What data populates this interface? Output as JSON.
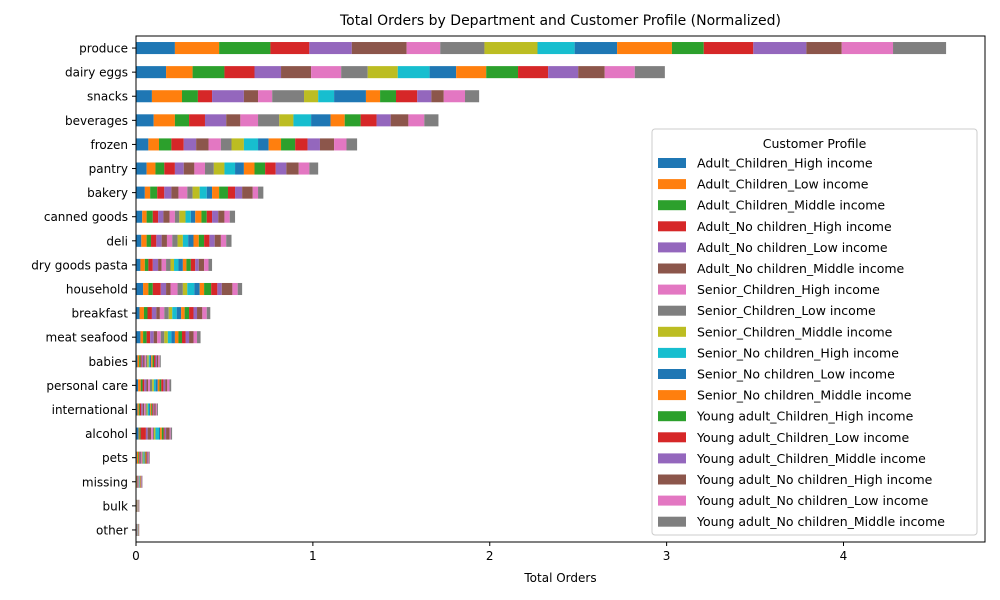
{
  "chart_data": {
    "type": "bar",
    "orientation": "horizontal",
    "stacked": true,
    "title": "Total Orders by Department and Customer Profile (Normalized)",
    "xlabel": "Total Orders",
    "ylabel": "",
    "xlim": [
      0,
      4.8
    ],
    "xticks": [
      "0",
      "1",
      "2",
      "3",
      "4"
    ],
    "grid": false,
    "legend_title": "Customer Profile",
    "legend_position": "right",
    "categories": [
      "produce",
      "dairy eggs",
      "snacks",
      "beverages",
      "frozen",
      "pantry",
      "bakery",
      "canned goods",
      "deli",
      "dry goods pasta",
      "household",
      "breakfast",
      "meat seafood",
      "babies",
      "personal care",
      "international",
      "alcohol",
      "pets",
      "missing",
      "bulk",
      "other"
    ],
    "series": [
      {
        "name": "Adult_Children_High income",
        "color": "#1f77b4",
        "values": [
          0.22,
          0.17,
          0.09,
          0.1,
          0.07,
          0.06,
          0.05,
          0.035,
          0.03,
          0.025,
          0.04,
          0.02,
          0.025,
          0.008,
          0.012,
          0.008,
          0.015,
          0.005,
          0.003,
          0.003,
          0.002
        ]
      },
      {
        "name": "Adult_Children_Low income",
        "color": "#ff7f0e",
        "values": [
          0.25,
          0.15,
          0.17,
          0.12,
          0.06,
          0.05,
          0.03,
          0.025,
          0.03,
          0.025,
          0.03,
          0.025,
          0.015,
          0.01,
          0.015,
          0.008,
          0.005,
          0.008,
          0.002,
          0.001,
          0.001
        ]
      },
      {
        "name": "Adult_Children_Middle income",
        "color": "#2ca02c",
        "values": [
          0.29,
          0.18,
          0.09,
          0.08,
          0.07,
          0.05,
          0.04,
          0.035,
          0.025,
          0.02,
          0.025,
          0.02,
          0.02,
          0.008,
          0.01,
          0.006,
          0.006,
          0.004,
          0.002,
          0.001,
          0.001
        ]
      },
      {
        "name": "Adult_No children_High income",
        "color": "#d62728",
        "values": [
          0.22,
          0.17,
          0.08,
          0.09,
          0.07,
          0.06,
          0.04,
          0.03,
          0.03,
          0.025,
          0.045,
          0.025,
          0.02,
          0.006,
          0.01,
          0.008,
          0.03,
          0.004,
          0.002,
          0.001,
          0.001
        ]
      },
      {
        "name": "Adult_No children_Low income",
        "color": "#9467bd",
        "values": [
          0.24,
          0.15,
          0.18,
          0.12,
          0.07,
          0.05,
          0.04,
          0.03,
          0.03,
          0.03,
          0.03,
          0.025,
          0.02,
          0.008,
          0.012,
          0.008,
          0.01,
          0.004,
          0.002,
          0.001,
          0.001
        ]
      },
      {
        "name": "Adult_No children_Middle income",
        "color": "#8c564b",
        "values": [
          0.31,
          0.17,
          0.08,
          0.08,
          0.07,
          0.06,
          0.04,
          0.035,
          0.03,
          0.02,
          0.025,
          0.02,
          0.02,
          0.008,
          0.01,
          0.008,
          0.02,
          0.005,
          0.002,
          0.001,
          0.001
        ]
      },
      {
        "name": "Senior_Children_High income",
        "color": "#e377c2",
        "values": [
          0.19,
          0.17,
          0.08,
          0.1,
          0.07,
          0.06,
          0.05,
          0.03,
          0.03,
          0.025,
          0.04,
          0.025,
          0.02,
          0.008,
          0.01,
          0.008,
          0.01,
          0.004,
          0.002,
          0.001,
          0.001
        ]
      },
      {
        "name": "Senior_Children_Low income",
        "color": "#7f7f7f",
        "values": [
          0.25,
          0.15,
          0.18,
          0.12,
          0.06,
          0.05,
          0.03,
          0.025,
          0.03,
          0.025,
          0.03,
          0.025,
          0.02,
          0.008,
          0.012,
          0.006,
          0.006,
          0.004,
          0.002,
          0.001,
          0.001
        ]
      },
      {
        "name": "Senior_Children_Middle income",
        "color": "#bcbd22",
        "values": [
          0.3,
          0.17,
          0.08,
          0.08,
          0.07,
          0.06,
          0.04,
          0.035,
          0.03,
          0.02,
          0.025,
          0.02,
          0.02,
          0.008,
          0.01,
          0.006,
          0.008,
          0.004,
          0.002,
          0.001,
          0.001
        ]
      },
      {
        "name": "Senior_No children_High income",
        "color": "#17becf",
        "values": [
          0.21,
          0.18,
          0.09,
          0.1,
          0.08,
          0.06,
          0.04,
          0.03,
          0.03,
          0.025,
          0.04,
          0.025,
          0.02,
          0.006,
          0.01,
          0.008,
          0.02,
          0.004,
          0.002,
          0.001,
          0.001
        ]
      },
      {
        "name": "Senior_No children_Low income",
        "color": "#1f77b4",
        "values": [
          0.24,
          0.15,
          0.18,
          0.11,
          0.06,
          0.05,
          0.03,
          0.025,
          0.03,
          0.025,
          0.03,
          0.025,
          0.02,
          0.008,
          0.012,
          0.006,
          0.006,
          0.004,
          0.002,
          0.001,
          0.001
        ]
      },
      {
        "name": "Senior_No children_Middle income",
        "color": "#ff7f0e",
        "values": [
          0.31,
          0.17,
          0.08,
          0.08,
          0.07,
          0.06,
          0.04,
          0.035,
          0.03,
          0.02,
          0.025,
          0.02,
          0.02,
          0.008,
          0.01,
          0.006,
          0.01,
          0.004,
          0.002,
          0.001,
          0.001
        ]
      },
      {
        "name": "Young adult_Children_High income",
        "color": "#2ca02c",
        "values": [
          0.18,
          0.18,
          0.09,
          0.09,
          0.08,
          0.06,
          0.05,
          0.03,
          0.03,
          0.025,
          0.04,
          0.025,
          0.02,
          0.008,
          0.01,
          0.006,
          0.01,
          0.004,
          0.002,
          0.001,
          0.001
        ]
      },
      {
        "name": "Young adult_Children_Low income",
        "color": "#d62728",
        "values": [
          0.28,
          0.17,
          0.12,
          0.09,
          0.07,
          0.06,
          0.04,
          0.03,
          0.03,
          0.025,
          0.035,
          0.025,
          0.02,
          0.008,
          0.012,
          0.006,
          0.006,
          0.004,
          0.002,
          0.001,
          0.001
        ]
      },
      {
        "name": "Young adult_Children_Middle income",
        "color": "#9467bd",
        "values": [
          0.3,
          0.17,
          0.08,
          0.08,
          0.07,
          0.06,
          0.04,
          0.035,
          0.03,
          0.02,
          0.025,
          0.02,
          0.02,
          0.008,
          0.01,
          0.006,
          0.008,
          0.004,
          0.002,
          0.001,
          0.001
        ]
      },
      {
        "name": "Young adult_No children_High income",
        "color": "#8c564b",
        "values": [
          0.2,
          0.15,
          0.07,
          0.1,
          0.08,
          0.07,
          0.06,
          0.035,
          0.035,
          0.03,
          0.06,
          0.03,
          0.025,
          0.008,
          0.012,
          0.008,
          0.02,
          0.004,
          0.002,
          0.001,
          0.001
        ]
      },
      {
        "name": "Young adult_No children_Low income",
        "color": "#e377c2",
        "values": [
          0.29,
          0.17,
          0.12,
          0.09,
          0.07,
          0.06,
          0.03,
          0.03,
          0.03,
          0.025,
          0.03,
          0.025,
          0.02,
          0.008,
          0.012,
          0.006,
          0.006,
          0.004,
          0.002,
          0.001,
          0.001
        ]
      },
      {
        "name": "Young adult_No children_Middle income",
        "color": "#7f7f7f",
        "values": [
          0.3,
          0.17,
          0.08,
          0.08,
          0.06,
          0.05,
          0.03,
          0.03,
          0.03,
          0.02,
          0.025,
          0.02,
          0.02,
          0.006,
          0.01,
          0.006,
          0.008,
          0.004,
          0.002,
          0.001,
          0.001
        ]
      }
    ]
  }
}
